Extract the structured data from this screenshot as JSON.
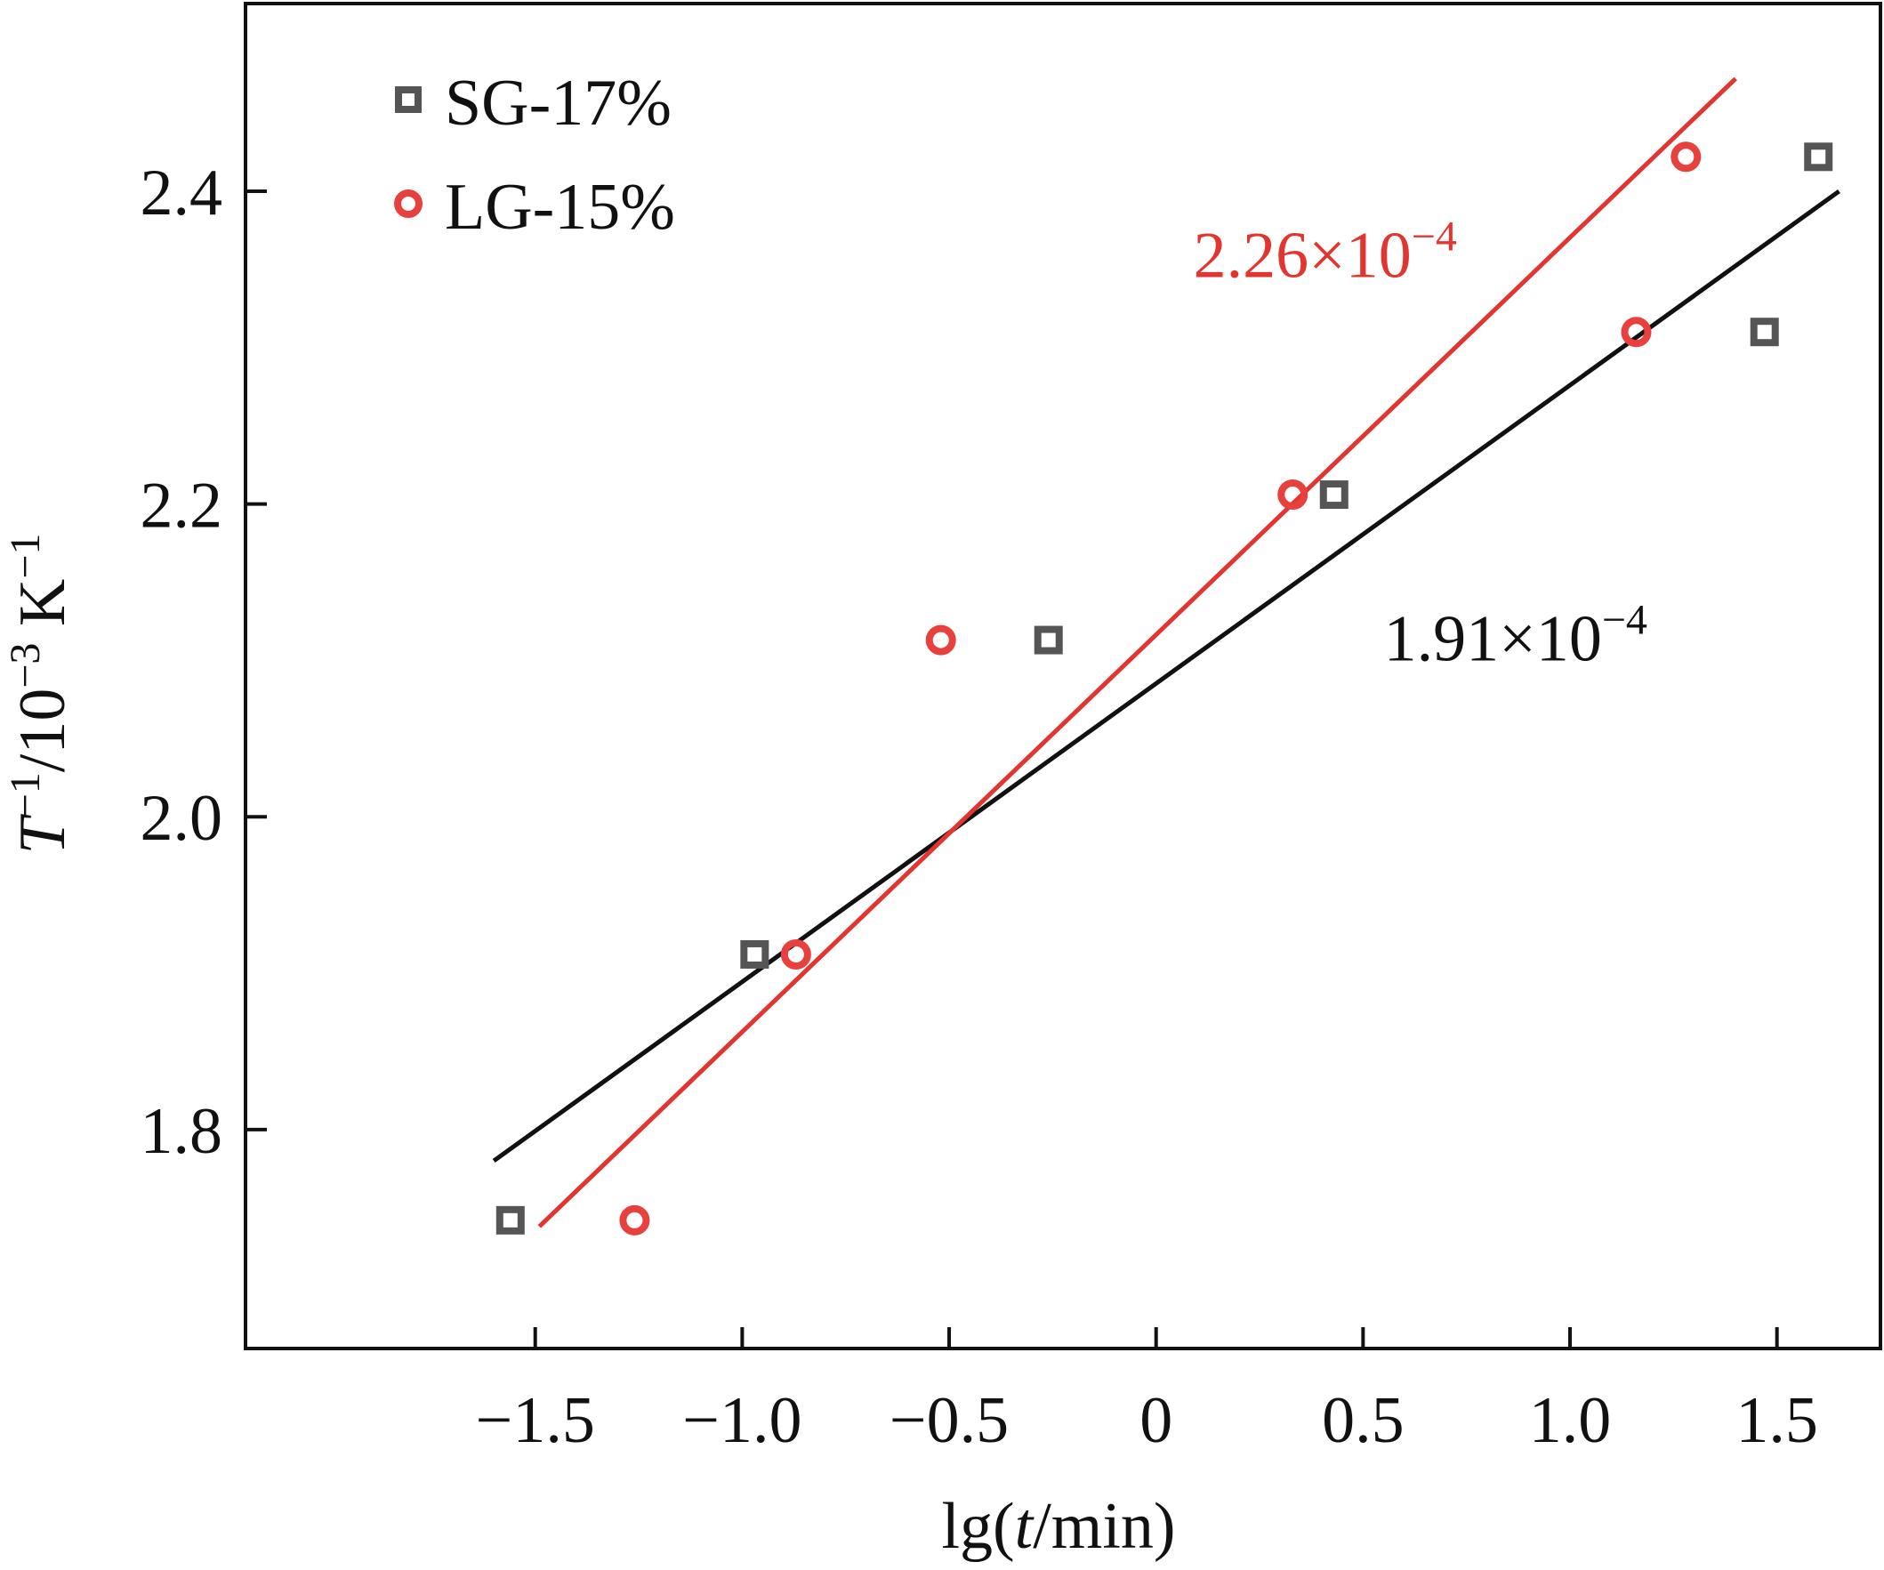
{
  "chart_data": {
    "type": "scatter",
    "xlim": [
      -2.2,
      1.75
    ],
    "ylim": [
      1.66,
      2.52
    ],
    "x_ticks": [
      -1.5,
      -1.0,
      -0.5,
      0,
      0.5,
      1.0,
      1.5
    ],
    "x_tick_labels": [
      "−1.5",
      "−1.0",
      "−0.5",
      "0",
      "0.5",
      "1.0",
      "1.5"
    ],
    "y_ticks": [
      1.8,
      2.0,
      2.2,
      2.4
    ],
    "y_tick_labels": [
      "1.8",
      "2.0",
      "2.2",
      "2.4"
    ],
    "xlabel": {
      "prefix": "lg(",
      "italic": "t",
      "suffix": "/min)"
    },
    "ylabel": {
      "italic": "T",
      "sup1": "−1",
      "mid": "/10",
      "sup2": "−3",
      "unit": " K",
      "sup3": "−1"
    },
    "legend_position": "top-left",
    "series": [
      {
        "name": "SG-17%",
        "marker": "square",
        "color": "#555555",
        "fit_color": "#111111",
        "points": [
          {
            "x": -1.56,
            "y": 1.742
          },
          {
            "x": -0.97,
            "y": 1.912
          },
          {
            "x": -0.26,
            "y": 2.113
          },
          {
            "x": 0.43,
            "y": 2.206
          },
          {
            "x": 1.47,
            "y": 2.31
          },
          {
            "x": 1.6,
            "y": 2.422
          }
        ],
        "fit_line": {
          "x1": -1.6,
          "y1": 1.78,
          "x2": 1.65,
          "y2": 2.4
        },
        "slope_label": {
          "base": "1.91×10",
          "exponent": "−4",
          "x": 0.55,
          "y": 2.1
        }
      },
      {
        "name": "LG-15%",
        "marker": "circle",
        "color": "#e8403c",
        "fit_color": "#e2352f",
        "points": [
          {
            "x": -1.26,
            "y": 1.742
          },
          {
            "x": -0.87,
            "y": 1.912
          },
          {
            "x": -0.52,
            "y": 2.113
          },
          {
            "x": 0.33,
            "y": 2.206
          },
          {
            "x": 1.16,
            "y": 2.31
          },
          {
            "x": 1.28,
            "y": 2.422
          }
        ],
        "fit_line": {
          "x1": -1.49,
          "y1": 1.738,
          "x2": 1.4,
          "y2": 2.472
        },
        "slope_label": {
          "base": "2.26×10",
          "exponent": "−4",
          "x": 0.09,
          "y": 2.345
        }
      }
    ]
  }
}
